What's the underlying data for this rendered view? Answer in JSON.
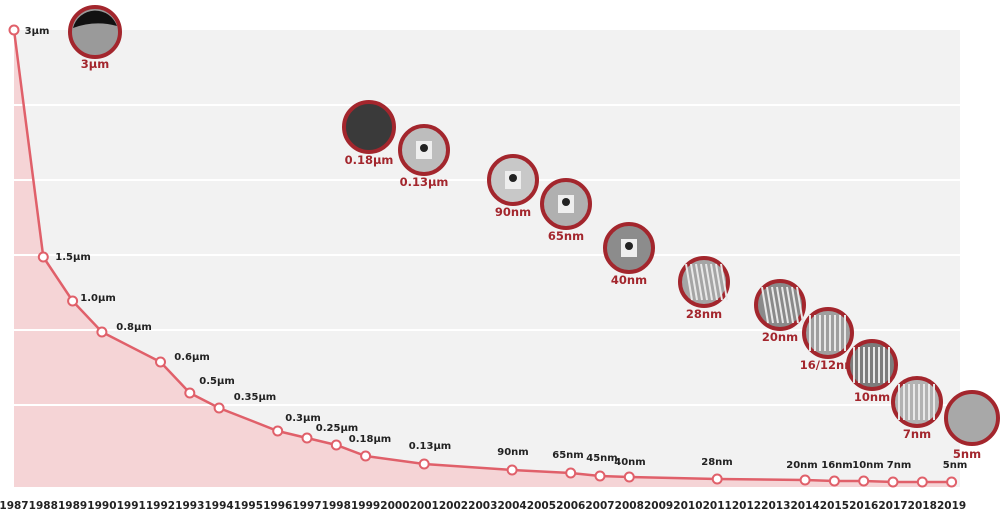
{
  "chart_data": {
    "type": "area",
    "title": "",
    "xlabel": "",
    "ylabel": "",
    "grid": true,
    "x_ticks": [
      1987,
      1988,
      1989,
      1990,
      1991,
      1992,
      1993,
      1994,
      1995,
      1996,
      1997,
      1998,
      1999,
      2000,
      2001,
      2002,
      2003,
      2004,
      2005,
      2006,
      2007,
      2008,
      2009,
      2010,
      2011,
      2012,
      2013,
      2014,
      2015,
      2016,
      2017,
      2018,
      2019
    ],
    "points": [
      {
        "year": 1987,
        "value_nm": 3000
      },
      {
        "year": 1988,
        "value_nm": 1500
      },
      {
        "year": 1989,
        "value_nm": 1000
      },
      {
        "year": 1990,
        "value_nm": 800
      },
      {
        "year": 1992,
        "value_nm": 600
      },
      {
        "year": 1993,
        "value_nm": 500
      },
      {
        "year": 1994,
        "value_nm": 350
      },
      {
        "year": 1996,
        "value_nm": 300
      },
      {
        "year": 1997,
        "value_nm": 250
      },
      {
        "year": 1998,
        "value_nm": 180
      },
      {
        "year": 1999,
        "value_nm": 180
      },
      {
        "year": 2001,
        "value_nm": 130
      },
      {
        "year": 2004,
        "value_nm": 90
      },
      {
        "year": 2006,
        "value_nm": 65
      },
      {
        "year": 2007,
        "value_nm": 45
      },
      {
        "year": 2008,
        "value_nm": 40
      },
      {
        "year": 2011,
        "value_nm": 28
      },
      {
        "year": 2014,
        "value_nm": 20
      },
      {
        "year": 2015,
        "value_nm": 16
      },
      {
        "year": 2016,
        "value_nm": 10
      },
      {
        "year": 2017,
        "value_nm": 7
      },
      {
        "year": 2018,
        "value_nm": 7
      },
      {
        "year": 2019,
        "value_nm": 5
      }
    ],
    "point_labels": [
      "3µm",
      "1.5µm",
      "1.0µm",
      "0.8µm",
      "0.6µm",
      "0.5µm",
      "0.35µm",
      "0.3µm",
      "0.25µm",
      "0.18µm",
      "0.13µm",
      "90nm",
      "65nm",
      "45nm",
      "40nm",
      "28nm",
      "20nm",
      "16nm",
      "10nm",
      "7nm",
      "5nm"
    ],
    "node_images": [
      "3µm",
      "0.18µm",
      "0.13µm",
      "90nm",
      "65nm",
      "40nm",
      "28nm",
      "20nm",
      "16/12nm",
      "10nm",
      "7nm",
      "5nm"
    ],
    "colors": {
      "line": "#e0606a",
      "fill": "#f5d0d3",
      "plot_bg": "#f2f2f2",
      "ring": "#a3262d"
    }
  }
}
